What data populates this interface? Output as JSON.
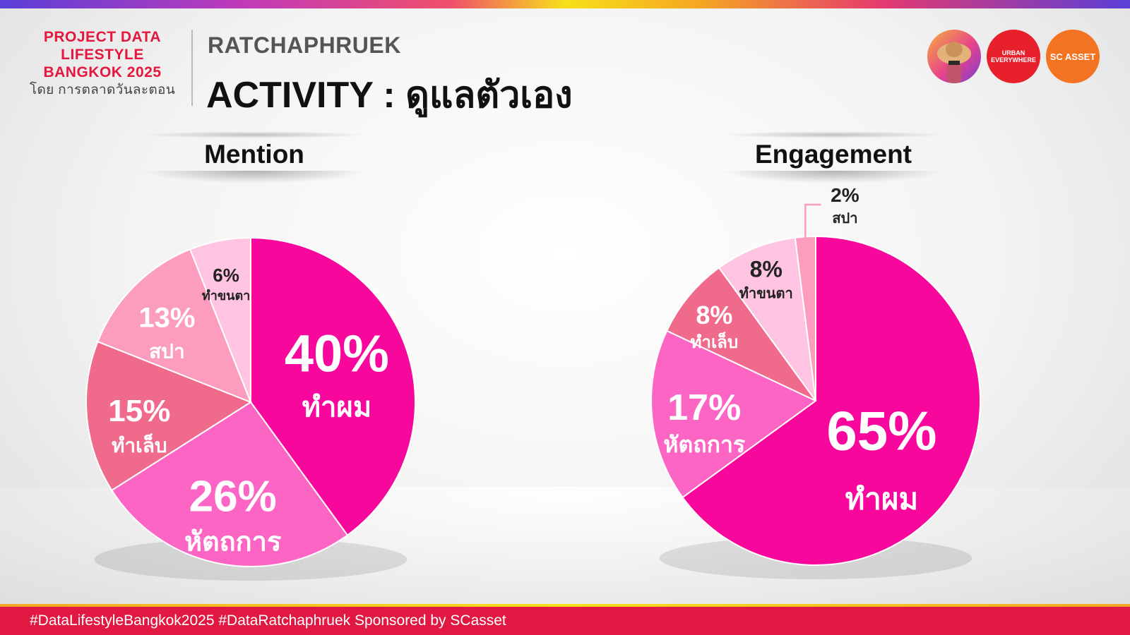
{
  "branding": {
    "line1": "PROJECT DATA",
    "line2": "LIFESTYLE",
    "line3": "BANGKOK 2025",
    "line4": "โดย การตลาดวันละตอน"
  },
  "header": {
    "area": "RATCHAPHRUEK",
    "title": "ACTIVITY : ดูแลตัวเอง"
  },
  "logos": [
    {
      "name": "avatar-logo",
      "text": ""
    },
    {
      "name": "urban-everywhere-logo",
      "text_line1": "URBAN",
      "text_line2": "EVERYWHERE"
    },
    {
      "name": "sc-asset-logo",
      "text": "SC ASSET"
    }
  ],
  "chart_data": [
    {
      "type": "pie",
      "title": "Mention",
      "categories": [
        "ทำผม",
        "หัตถการ",
        "ทำเล็บ",
        "สปา",
        "ทำขนตา"
      ],
      "values": [
        40,
        26,
        15,
        13,
        6
      ],
      "labels": [
        "40%",
        "26%",
        "15%",
        "13%",
        "6%"
      ],
      "colors": [
        "#f7079b",
        "#fd65c4",
        "#f06a8c",
        "#fc9dbf",
        "#ffc4e1"
      ]
    },
    {
      "type": "pie",
      "title": "Engagement",
      "categories": [
        "ทำผม",
        "หัตถการ",
        "ทำเล็บ",
        "ทำขนตา",
        "สปา"
      ],
      "values": [
        65,
        17,
        8,
        8,
        2
      ],
      "labels": [
        "65%",
        "17%",
        "8%",
        "8%",
        "2%"
      ],
      "colors": [
        "#f7079b",
        "#fd65c4",
        "#f06a8c",
        "#ffc4e1",
        "#fc9dbf"
      ]
    }
  ],
  "footer": {
    "text": "#DataLifestyleBangkok2025 #DataRatchaphruek Sponsored by SCasset"
  }
}
